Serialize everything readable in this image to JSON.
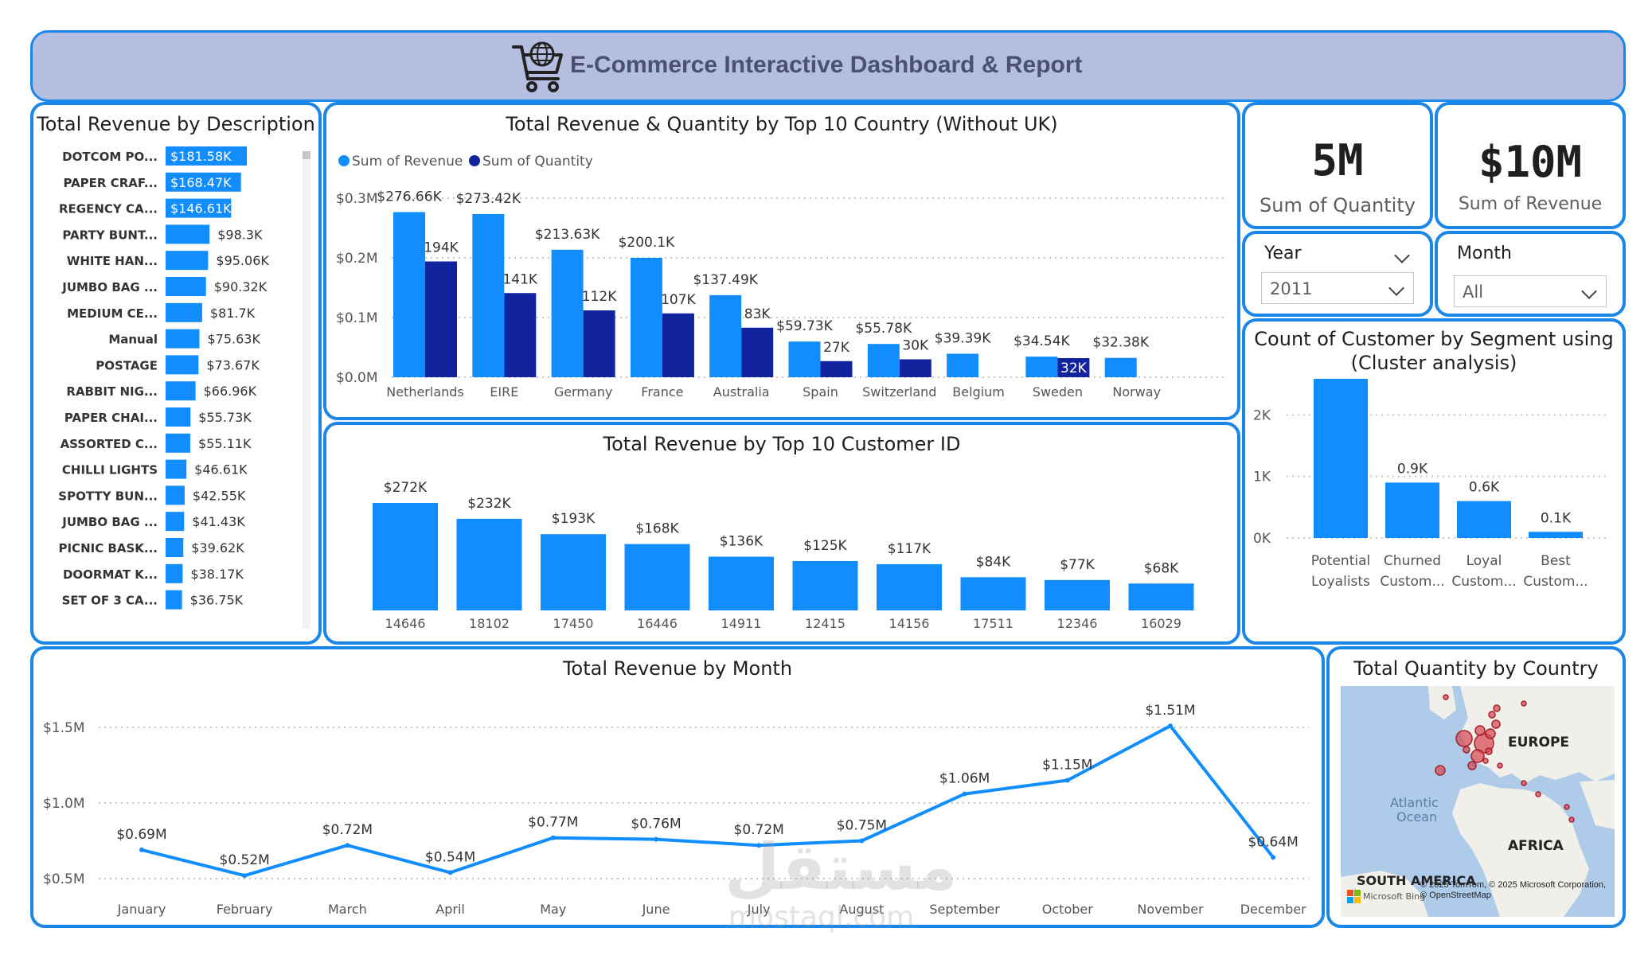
{
  "header": {
    "title": "E-Commerce Interactive Dashboard & Report",
    "icon": "shopping-cart-globe-icon"
  },
  "kpis": {
    "quantity": {
      "value": "5M",
      "label": "Sum of Quantity"
    },
    "revenue": {
      "value": "$10M",
      "label": "Sum of Revenue"
    }
  },
  "slicers": {
    "year": {
      "label": "Year",
      "value": "2011"
    },
    "month": {
      "label": "Month",
      "value": "All"
    }
  },
  "desc_chart": {
    "title": "Total Revenue by Description",
    "chart_data": {
      "type": "bar",
      "orientation": "horizontal",
      "categories": [
        "DOTCOM PO...",
        "PAPER CRAF...",
        "REGENCY CA...",
        "PARTY BUNT...",
        "WHITE HAN...",
        "JUMBO BAG ...",
        "MEDIUM CE...",
        "Manual",
        "POSTAGE",
        "RABBIT NIG...",
        "PAPER CHAI...",
        "ASSORTED C...",
        "CHILLI LIGHTS",
        "SPOTTY BUN...",
        "JUMBO BAG ...",
        "PICNIC BASK...",
        "DOORMAT K...",
        "SET OF 3 CA..."
      ],
      "values": [
        181.58,
        168.47,
        146.61,
        98.3,
        95.06,
        90.32,
        81.7,
        75.63,
        73.67,
        66.96,
        55.73,
        55.11,
        46.61,
        42.55,
        41.43,
        39.62,
        38.17,
        36.75
      ],
      "labels": [
        "$181.58K",
        "$168.47K",
        "$146.61K",
        "$98.3K",
        "$95.06K",
        "$90.32K",
        "$81.7K",
        "$75.63K",
        "$73.67K",
        "$66.96K",
        "$55.73K",
        "$55.11K",
        "$46.61K",
        "$42.55K",
        "$41.43K",
        "$39.62K",
        "$38.17K",
        "$36.75K"
      ],
      "unit": "K",
      "color": "#118dff"
    }
  },
  "country_chart": {
    "title": "Total Revenue & Quantity by Top 10 Country (Without UK)",
    "legend": [
      "Sum of Revenue",
      "Sum of Quantity"
    ],
    "chart_data": {
      "type": "bar",
      "categories": [
        "Netherlands",
        "EIRE",
        "Germany",
        "France",
        "Australia",
        "Spain",
        "Switzerland",
        "Belgium",
        "Sweden",
        "Norway"
      ],
      "series": [
        {
          "name": "Sum of Revenue",
          "values": [
            276.66,
            273.42,
            213.63,
            200.1,
            137.49,
            59.73,
            55.78,
            39.39,
            34.54,
            32.38
          ],
          "labels": [
            "$276.66K",
            "$273.42K",
            "$213.63K",
            "$200.1K",
            "$137.49K",
            "$59.73K",
            "$55.78K",
            "$39.39K",
            "$34.54K",
            "$32.38K"
          ],
          "color": "#118dff"
        },
        {
          "name": "Sum of Quantity",
          "values": [
            194,
            141,
            112,
            107,
            83,
            27,
            30,
            0,
            32,
            0
          ],
          "labels": [
            "194K",
            "141K",
            "112K",
            "107K",
            "83K",
            "27K",
            "30K",
            "",
            "32K",
            ""
          ],
          "color": "#12239e"
        }
      ],
      "y_ticks": [
        "$0.0M",
        "$0.1M",
        "$0.2M",
        "$0.3M"
      ],
      "ylim": [
        0,
        300
      ]
    }
  },
  "customer_chart": {
    "title": "Total Revenue by Top 10 Customer ID",
    "chart_data": {
      "type": "bar",
      "categories": [
        "14646",
        "18102",
        "17450",
        "16446",
        "14911",
        "12415",
        "14156",
        "17511",
        "12346",
        "16029"
      ],
      "values": [
        272,
        232,
        193,
        168,
        136,
        125,
        117,
        84,
        77,
        68
      ],
      "labels": [
        "$272K",
        "$232K",
        "$193K",
        "$168K",
        "$136K",
        "$125K",
        "$117K",
        "$84K",
        "$77K",
        "$68K"
      ],
      "color": "#118dff"
    }
  },
  "segment_chart": {
    "title_line1": "Count of Customer by Segment using",
    "title_line2": "(Cluster analysis)",
    "chart_data": {
      "type": "bar",
      "categories": [
        [
          "Potential",
          "Loyalists"
        ],
        [
          "Churned",
          "Custom..."
        ],
        [
          "Loyal",
          "Custom..."
        ],
        [
          "Best",
          "Custom..."
        ]
      ],
      "values": [
        2.6,
        0.9,
        0.6,
        0.1
      ],
      "labels": [
        "2.6K",
        "0.9K",
        "0.6K",
        "0.1K"
      ],
      "y_ticks": [
        "0K",
        "1K",
        "2K",
        "3K"
      ],
      "ylim": [
        0,
        3
      ],
      "color": "#118dff"
    }
  },
  "month_chart": {
    "title": "Total Revenue by Month",
    "chart_data": {
      "type": "line",
      "categories": [
        "January",
        "February",
        "March",
        "April",
        "May",
        "June",
        "July",
        "August",
        "September",
        "October",
        "November",
        "December"
      ],
      "values": [
        0.69,
        0.52,
        0.72,
        0.54,
        0.77,
        0.76,
        0.72,
        0.75,
        1.06,
        1.15,
        1.51,
        0.64
      ],
      "labels": [
        "$0.69M",
        "$0.52M",
        "$0.72M",
        "$0.54M",
        "$0.77M",
        "$0.76M",
        "$0.72M",
        "$0.75M",
        "$1.06M",
        "$1.15M",
        "$1.51M",
        "$0.64M"
      ],
      "y_ticks": [
        "$0.5M",
        "$1.0M",
        "$1.5M"
      ],
      "ylim": [
        0.5,
        1.5
      ],
      "color": "#118dff"
    }
  },
  "map": {
    "title": "Total Quantity by Country",
    "labels": {
      "europe": "EUROPE",
      "atlantic": "Atlantic\nOcean",
      "africa": "AFRICA",
      "south_america": "SOUTH AMERICA",
      "credit": "© 2025 TomTom, © 2025 Microsoft Corporation, © OpenStreetMap",
      "bing": "Microsoft Bing"
    },
    "bubble_color": "#d64550"
  },
  "watermark": {
    "arabic": "مستقل",
    "latin": "mostaql.com"
  }
}
